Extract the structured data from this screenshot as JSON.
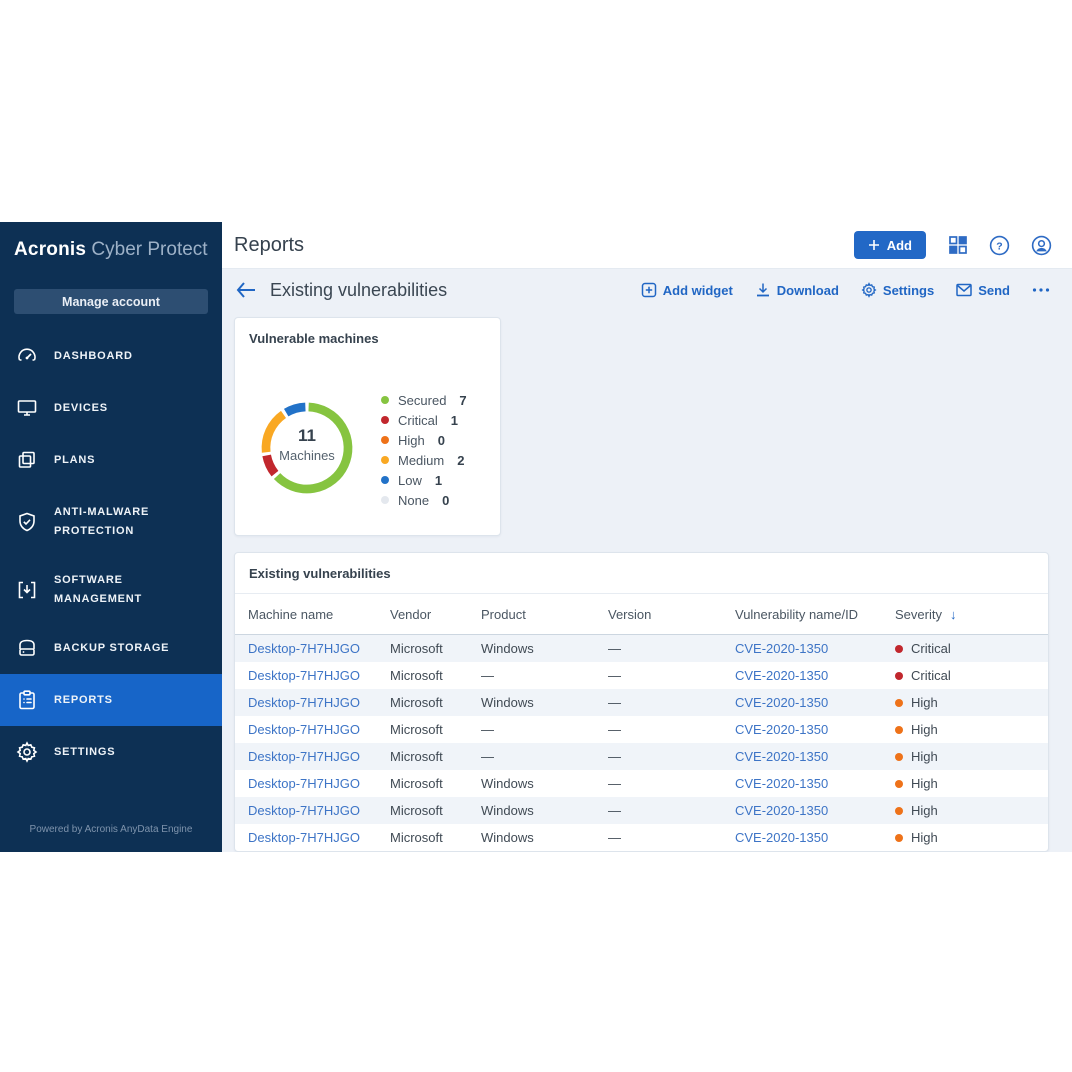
{
  "brand": {
    "bold": "Acronis",
    "light": "Cyber Protect"
  },
  "sidebar": {
    "manage_account": "Manage account",
    "items": [
      {
        "label": "DASHBOARD",
        "icon": "dashboard-icon",
        "size": "one",
        "selected": false
      },
      {
        "label": "DEVICES",
        "icon": "devices-icon",
        "size": "one",
        "selected": false
      },
      {
        "label": "PLANS",
        "icon": "plans-icon",
        "size": "one",
        "selected": false
      },
      {
        "label": "ANTI-MALWARE PROTECTION",
        "icon": "shield-icon",
        "size": "two",
        "selected": false
      },
      {
        "label": "SOFTWARE MANAGEMENT",
        "icon": "software-icon",
        "size": "mid",
        "selected": false
      },
      {
        "label": "BACKUP STORAGE",
        "icon": "storage-icon",
        "size": "one",
        "selected": false
      },
      {
        "label": "REPORTS",
        "icon": "reports-icon",
        "size": "one",
        "selected": true
      },
      {
        "label": "SETTINGS",
        "icon": "settings-icon",
        "size": "one",
        "selected": false
      }
    ],
    "footer": "Powered by Acronis AnyData Engine"
  },
  "header": {
    "title": "Reports",
    "add_button": "Add",
    "icons": [
      "apps-grid-icon",
      "help-icon",
      "account-icon"
    ]
  },
  "toolbar": {
    "report_title": "Existing vulnerabilities",
    "actions": [
      {
        "label": "Add widget",
        "icon": "add-widget-icon"
      },
      {
        "label": "Download",
        "icon": "download-icon"
      },
      {
        "label": "Settings",
        "icon": "gear-icon"
      },
      {
        "label": "Send",
        "icon": "envelope-icon"
      },
      {
        "label": "",
        "icon": "ellipsis-icon"
      }
    ]
  },
  "chart_data": {
    "type": "donut",
    "title": "Vulnerable machines",
    "center_value": "11",
    "center_label": "Machines",
    "total": 11,
    "legend_position": "right",
    "segments": [
      {
        "label": "Secured",
        "value": 7,
        "color": "#86c440"
      },
      {
        "label": "Critical",
        "value": 1,
        "color": "#c1272d"
      },
      {
        "label": "High",
        "value": 0,
        "color": "#ee7219"
      },
      {
        "label": "Medium",
        "value": 2,
        "color": "#f9a823"
      },
      {
        "label": "Low",
        "value": 1,
        "color": "#2272c8"
      },
      {
        "label": "None",
        "value": 0,
        "color": "#e4e8ee"
      }
    ]
  },
  "table": {
    "title": "Existing vulnerabilities",
    "columns": [
      "Machine name",
      "Vendor",
      "Product",
      "Version",
      "Vulnerability name/ID",
      "Severity"
    ],
    "sorted_column": "Severity",
    "sort_direction": "down",
    "severity_colors": {
      "Critical": "#c1272d",
      "High": "#ee7219"
    },
    "rows": [
      {
        "machine": "Desktop-7H7HJGO",
        "vendor": "Microsoft",
        "product": "Windows",
        "version": "—",
        "vuln": "CVE-2020-1350",
        "severity": "Critical"
      },
      {
        "machine": "Desktop-7H7HJGO",
        "vendor": "Microsoft",
        "product": "—",
        "version": "—",
        "vuln": "CVE-2020-1350",
        "severity": "Critical"
      },
      {
        "machine": "Desktop-7H7HJGO",
        "vendor": "Microsoft",
        "product": "Windows",
        "version": "—",
        "vuln": "CVE-2020-1350",
        "severity": "High"
      },
      {
        "machine": "Desktop-7H7HJGO",
        "vendor": "Microsoft",
        "product": "—",
        "version": "—",
        "vuln": "CVE-2020-1350",
        "severity": "High"
      },
      {
        "machine": "Desktop-7H7HJGO",
        "vendor": "Microsoft",
        "product": "—",
        "version": "—",
        "vuln": "CVE-2020-1350",
        "severity": "High"
      },
      {
        "machine": "Desktop-7H7HJGO",
        "vendor": "Microsoft",
        "product": "Windows",
        "version": "—",
        "vuln": "CVE-2020-1350",
        "severity": "High"
      },
      {
        "machine": "Desktop-7H7HJGO",
        "vendor": "Microsoft",
        "product": "Windows",
        "version": "—",
        "vuln": "CVE-2020-1350",
        "severity": "High"
      },
      {
        "machine": "Desktop-7H7HJGO",
        "vendor": "Microsoft",
        "product": "Windows",
        "version": "—",
        "vuln": "CVE-2020-1350",
        "severity": "High"
      }
    ]
  }
}
